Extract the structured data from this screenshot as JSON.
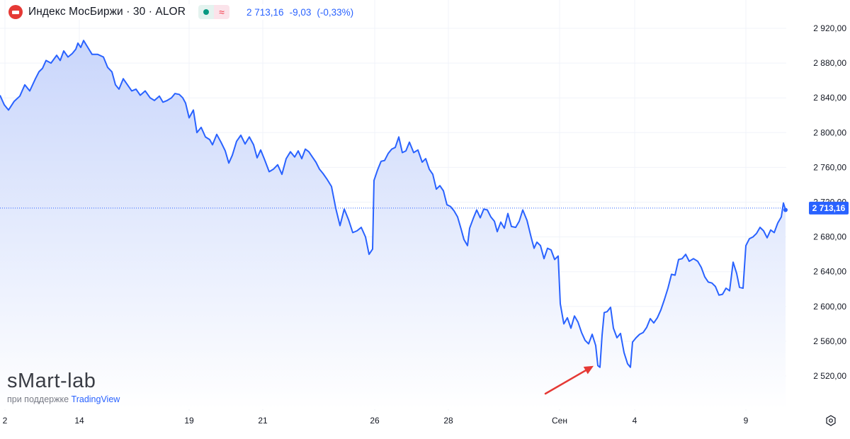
{
  "header": {
    "title": "Индекс МосБиржи · 30 · ALOR",
    "status_icon": "market-open-dot-icon",
    "wave_icon": "delay-wave-icon",
    "last": "2 713,16",
    "change": "-9,03",
    "change_pct": "(-0,33%)"
  },
  "watermark": {
    "title": "sMart-lab",
    "sub_prefix": "при поддержке",
    "sub_brand": "TradingView"
  },
  "price_label": "2 713,16",
  "colors": {
    "line": "#2962ff",
    "fill_top": "#c9d6fb",
    "fill_bottom": "#ffffff",
    "grid": "#f0f3fa",
    "label": "#131722",
    "price_tag": "#2962ff",
    "arrow": "#e53935",
    "header_logo": "#e53935"
  },
  "settings_icon": "settings-icon",
  "chart_data": {
    "type": "area",
    "y_axis_position": "right",
    "ylim": [
      2490,
      2940
    ],
    "yticks": [
      "2 520,00",
      "2 560,00",
      "2 600,00",
      "2 640,00",
      "2 680,00",
      "2 720,00",
      "2 760,00",
      "2 800,00",
      "2 840,00",
      "2 880,00",
      "2 920,00"
    ],
    "ytick_values": [
      2520,
      2560,
      2600,
      2640,
      2680,
      2720,
      2760,
      2800,
      2840,
      2880,
      2920
    ],
    "xlim": [
      0,
      1110
    ],
    "xticks": [
      {
        "label": "2",
        "x": 7
      },
      {
        "label": "14",
        "x": 112
      },
      {
        "label": "19",
        "x": 267
      },
      {
        "label": "21",
        "x": 371
      },
      {
        "label": "26",
        "x": 529
      },
      {
        "label": "28",
        "x": 633
      },
      {
        "label": "Сен",
        "x": 790
      },
      {
        "label": "4",
        "x": 896
      },
      {
        "label": "9",
        "x": 1053
      }
    ],
    "last_value": 2713.16,
    "annotation": {
      "type": "arrow",
      "target_x": 838,
      "target_y": 2530
    },
    "series": [
      {
        "points": [
          [
            0,
            2843
          ],
          [
            6,
            2832
          ],
          [
            12,
            2826
          ],
          [
            20,
            2836
          ],
          [
            28,
            2842
          ],
          [
            35,
            2855
          ],
          [
            42,
            2848
          ],
          [
            50,
            2862
          ],
          [
            55,
            2870
          ],
          [
            60,
            2874
          ],
          [
            65,
            2883
          ],
          [
            72,
            2880
          ],
          [
            80,
            2889
          ],
          [
            85,
            2883
          ],
          [
            90,
            2894
          ],
          [
            96,
            2887
          ],
          [
            102,
            2891
          ],
          [
            107,
            2896
          ],
          [
            110,
            2903
          ],
          [
            114,
            2898
          ],
          [
            118,
            2906
          ],
          [
            124,
            2898
          ],
          [
            130,
            2890
          ],
          [
            138,
            2890
          ],
          [
            146,
            2887
          ],
          [
            152,
            2875
          ],
          [
            158,
            2870
          ],
          [
            163,
            2855
          ],
          [
            168,
            2850
          ],
          [
            174,
            2862
          ],
          [
            180,
            2855
          ],
          [
            186,
            2848
          ],
          [
            192,
            2850
          ],
          [
            198,
            2843
          ],
          [
            205,
            2848
          ],
          [
            212,
            2840
          ],
          [
            218,
            2837
          ],
          [
            225,
            2842
          ],
          [
            230,
            2835
          ],
          [
            236,
            2837
          ],
          [
            242,
            2840
          ],
          [
            247,
            2845
          ],
          [
            253,
            2844
          ],
          [
            258,
            2840
          ],
          [
            262,
            2834
          ],
          [
            267,
            2817
          ],
          [
            273,
            2826
          ],
          [
            278,
            2800
          ],
          [
            284,
            2806
          ],
          [
            290,
            2795
          ],
          [
            296,
            2792
          ],
          [
            300,
            2786
          ],
          [
            306,
            2798
          ],
          [
            312,
            2789
          ],
          [
            318,
            2779
          ],
          [
            323,
            2765
          ],
          [
            328,
            2774
          ],
          [
            334,
            2790
          ],
          [
            340,
            2797
          ],
          [
            346,
            2787
          ],
          [
            352,
            2795
          ],
          [
            358,
            2786
          ],
          [
            363,
            2771
          ],
          [
            368,
            2780
          ],
          [
            374,
            2768
          ],
          [
            380,
            2755
          ],
          [
            386,
            2758
          ],
          [
            392,
            2763
          ],
          [
            398,
            2752
          ],
          [
            404,
            2770
          ],
          [
            410,
            2778
          ],
          [
            416,
            2772
          ],
          [
            421,
            2779
          ],
          [
            426,
            2770
          ],
          [
            431,
            2781
          ],
          [
            436,
            2778
          ],
          [
            441,
            2772
          ],
          [
            446,
            2766
          ],
          [
            451,
            2758
          ],
          [
            456,
            2753
          ],
          [
            462,
            2746
          ],
          [
            468,
            2738
          ],
          [
            474,
            2713
          ],
          [
            480,
            2693
          ],
          [
            486,
            2712
          ],
          [
            492,
            2700
          ],
          [
            498,
            2685
          ],
          [
            504,
            2687
          ],
          [
            510,
            2691
          ],
          [
            516,
            2680
          ],
          [
            521,
            2660
          ],
          [
            526,
            2666
          ],
          [
            528,
            2745
          ],
          [
            533,
            2757
          ],
          [
            538,
            2767
          ],
          [
            543,
            2768
          ],
          [
            548,
            2776
          ],
          [
            553,
            2781
          ],
          [
            558,
            2783
          ],
          [
            563,
            2795
          ],
          [
            568,
            2777
          ],
          [
            573,
            2779
          ],
          [
            578,
            2789
          ],
          [
            584,
            2777
          ],
          [
            590,
            2780
          ],
          [
            596,
            2766
          ],
          [
            601,
            2770
          ],
          [
            606,
            2758
          ],
          [
            611,
            2752
          ],
          [
            616,
            2735
          ],
          [
            621,
            2739
          ],
          [
            626,
            2733
          ],
          [
            631,
            2717
          ],
          [
            636,
            2715
          ],
          [
            641,
            2710
          ],
          [
            646,
            2703
          ],
          [
            651,
            2689
          ],
          [
            655,
            2677
          ],
          [
            660,
            2670
          ],
          [
            663,
            2690
          ],
          [
            668,
            2701
          ],
          [
            673,
            2711
          ],
          [
            678,
            2702
          ],
          [
            683,
            2712
          ],
          [
            688,
            2711
          ],
          [
            693,
            2703
          ],
          [
            698,
            2698
          ],
          [
            702,
            2686
          ],
          [
            707,
            2697
          ],
          [
            712,
            2690
          ],
          [
            717,
            2707
          ],
          [
            722,
            2692
          ],
          [
            728,
            2691
          ],
          [
            733,
            2698
          ],
          [
            738,
            2711
          ],
          [
            744,
            2699
          ],
          [
            750,
            2679
          ],
          [
            754,
            2667
          ],
          [
            758,
            2674
          ],
          [
            763,
            2670
          ],
          [
            768,
            2655
          ],
          [
            773,
            2667
          ],
          [
            778,
            2665
          ],
          [
            783,
            2654
          ],
          [
            788,
            2658
          ],
          [
            791,
            2603
          ],
          [
            796,
            2580
          ],
          [
            801,
            2587
          ],
          [
            806,
            2575
          ],
          [
            811,
            2589
          ],
          [
            816,
            2582
          ],
          [
            821,
            2570
          ],
          [
            826,
            2561
          ],
          [
            831,
            2557
          ],
          [
            836,
            2568
          ],
          [
            841,
            2555
          ],
          [
            844,
            2532
          ],
          [
            847,
            2530
          ],
          [
            850,
            2567
          ],
          [
            853,
            2593
          ],
          [
            857,
            2594
          ],
          [
            862,
            2599
          ],
          [
            866,
            2575
          ],
          [
            871,
            2564
          ],
          [
            876,
            2569
          ],
          [
            881,
            2547
          ],
          [
            886,
            2534
          ],
          [
            890,
            2530
          ],
          [
            893,
            2559
          ],
          [
            898,
            2564
          ],
          [
            903,
            2568
          ],
          [
            908,
            2570
          ],
          [
            913,
            2576
          ],
          [
            918,
            2586
          ],
          [
            923,
            2581
          ],
          [
            928,
            2587
          ],
          [
            933,
            2596
          ],
          [
            938,
            2608
          ],
          [
            943,
            2621
          ],
          [
            948,
            2637
          ],
          [
            953,
            2636
          ],
          [
            958,
            2654
          ],
          [
            963,
            2655
          ],
          [
            968,
            2660
          ],
          [
            973,
            2652
          ],
          [
            979,
            2655
          ],
          [
            985,
            2652
          ],
          [
            990,
            2645
          ],
          [
            995,
            2634
          ],
          [
            1000,
            2628
          ],
          [
            1005,
            2627
          ],
          [
            1010,
            2623
          ],
          [
            1015,
            2613
          ],
          [
            1020,
            2614
          ],
          [
            1025,
            2621
          ],
          [
            1030,
            2618
          ],
          [
            1035,
            2651
          ],
          [
            1040,
            2638
          ],
          [
            1044,
            2622
          ],
          [
            1049,
            2621
          ],
          [
            1053,
            2670
          ],
          [
            1058,
            2678
          ],
          [
            1063,
            2680
          ],
          [
            1068,
            2684
          ],
          [
            1073,
            2691
          ],
          [
            1078,
            2687
          ],
          [
            1083,
            2679
          ],
          [
            1088,
            2688
          ],
          [
            1093,
            2685
          ],
          [
            1098,
            2696
          ],
          [
            1103,
            2703
          ],
          [
            1106,
            2719
          ],
          [
            1109,
            2711
          ]
        ]
      }
    ]
  }
}
